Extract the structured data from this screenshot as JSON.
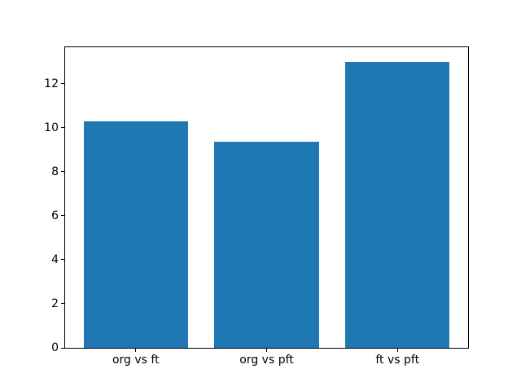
{
  "chart_data": {
    "type": "bar",
    "title": "",
    "xlabel": "",
    "ylabel": "",
    "categories": [
      "org vs ft",
      "org vs pft",
      "ft vs pft"
    ],
    "values": [
      10.27,
      9.35,
      13.0
    ],
    "yticks": [
      0,
      2,
      4,
      6,
      8,
      10,
      12
    ],
    "ylim": [
      0,
      13.65
    ],
    "xlim": [
      -0.54,
      2.54
    ],
    "bar_width_units": 0.8,
    "bar_color": "#1f77b4",
    "spine_color": "#000000",
    "background_color": "#ffffff",
    "grid": false,
    "legend": null
  }
}
